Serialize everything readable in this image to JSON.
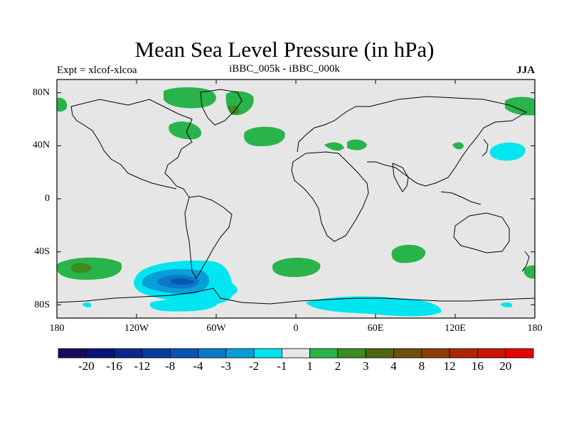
{
  "title": "Mean Sea Level Pressure (in hPa)",
  "expt_label": "Expt = xlcof-xlcoa",
  "center_label": "iBBC_005k - iBBC_000k",
  "season_label": "JJA",
  "y_axis_ticks": [
    "80N",
    "40N",
    "0",
    "40S",
    "80S"
  ],
  "x_axis_ticks": [
    "180",
    "120W",
    "60W",
    "0",
    "60E",
    "120E",
    "180"
  ],
  "colorbar": {
    "colors": [
      "#1a0a5c",
      "#0c1478",
      "#0a288c",
      "#0a3ca0",
      "#0a55b4",
      "#0a78c8",
      "#0a9ed8",
      "#00e6f0",
      "#e6e6e6",
      "#28b44b",
      "#3c8c1e",
      "#506414",
      "#6e500a",
      "#8c3c00",
      "#aa2800",
      "#c81400",
      "#e60000"
    ],
    "labels": [
      "-20",
      "-16",
      "-12",
      "-8",
      "-4",
      "-3",
      "-2",
      "-1",
      "1",
      "2",
      "3",
      "4",
      "8",
      "12",
      "16",
      "20"
    ]
  },
  "colors": {
    "background": "#e6e6e6",
    "pos1": "#28b44b",
    "pos2": "#3c8c1e",
    "neg1": "#00e6f0",
    "neg2": "#0a9ed8",
    "neg3": "#0a78c8",
    "neg4": "#0a55b4"
  }
}
